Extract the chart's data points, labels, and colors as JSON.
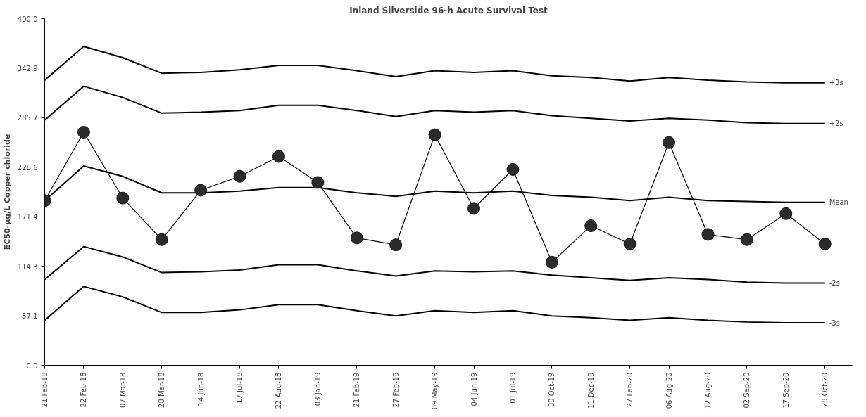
{
  "chart_data": {
    "type": "line",
    "title": "Inland Silverside 96-h Acute Survival Test",
    "ylabel": "EC50-µg/L Copper chloride",
    "categories": [
      "21 Feb-18",
      "22 Feb-18",
      "07 Mar-18",
      "28 Mar-18",
      "14 Jun-18",
      "17 Jul-18",
      "22 Aug-18",
      "03 Jan-19",
      "21 Feb-19",
      "27 Feb-19",
      "09 May-19",
      "04 Jun-19",
      "01 Jul-19",
      "30 Oct-19",
      "11 Dec-19",
      "27 Feb-20",
      "06 Aug-20",
      "12 Aug-20",
      "02 Sep-20",
      "17 Sep-20",
      "28 Oct-20"
    ],
    "ylim": [
      0,
      400
    ],
    "yticks": [
      {
        "value": 0,
        "label": "0.0"
      },
      {
        "value": 57.1,
        "label": "57.1"
      },
      {
        "value": 114.3,
        "label": "114.3"
      },
      {
        "value": 171.4,
        "label": "171.4"
      },
      {
        "value": 228.6,
        "label": "228.6"
      },
      {
        "value": 285.7,
        "label": "285.7"
      },
      {
        "value": 342.9,
        "label": "342.9"
      },
      {
        "value": 400,
        "label": "400.0"
      }
    ],
    "grid": false,
    "series": [
      {
        "name": "+3s",
        "color": "#000000",
        "marker": "none",
        "values": [
          329,
          368,
          355,
          337,
          338,
          341,
          346,
          346,
          340,
          333,
          340,
          338,
          340,
          334,
          332,
          328,
          332,
          329,
          327,
          326,
          326
        ]
      },
      {
        "name": "+2s",
        "color": "#000000",
        "marker": "none",
        "values": [
          283,
          322,
          309,
          291,
          292,
          294,
          300,
          300,
          294,
          287,
          294,
          292,
          294,
          288,
          285,
          282,
          285,
          283,
          280,
          279,
          279
        ]
      },
      {
        "name": "Mean",
        "color": "#000000",
        "marker": "none",
        "values": [
          190,
          230,
          218,
          199,
          199,
          201,
          205,
          205,
          199,
          195,
          201,
          199,
          201,
          196,
          194,
          190,
          194,
          190,
          189,
          188,
          188
        ]
      },
      {
        "name": "-2s",
        "color": "#000000",
        "marker": "none",
        "values": [
          99,
          137,
          125,
          107,
          108,
          110,
          116,
          116,
          109,
          103,
          109,
          108,
          109,
          104,
          101,
          98,
          101,
          99,
          96,
          95,
          95
        ]
      },
      {
        "name": "-3s",
        "color": "#000000",
        "marker": "none",
        "values": [
          52,
          91,
          79,
          61,
          61,
          64,
          70,
          70,
          63,
          57,
          63,
          61,
          63,
          57,
          55,
          52,
          55,
          52,
          50,
          49,
          49
        ]
      },
      {
        "color": "#2b2b2b",
        "marker": "circle",
        "values": [
          190,
          269,
          193,
          145,
          202,
          218,
          241,
          211,
          147,
          139,
          266,
          181,
          226,
          119,
          161,
          140,
          257,
          151,
          145,
          175,
          140
        ]
      }
    ]
  }
}
